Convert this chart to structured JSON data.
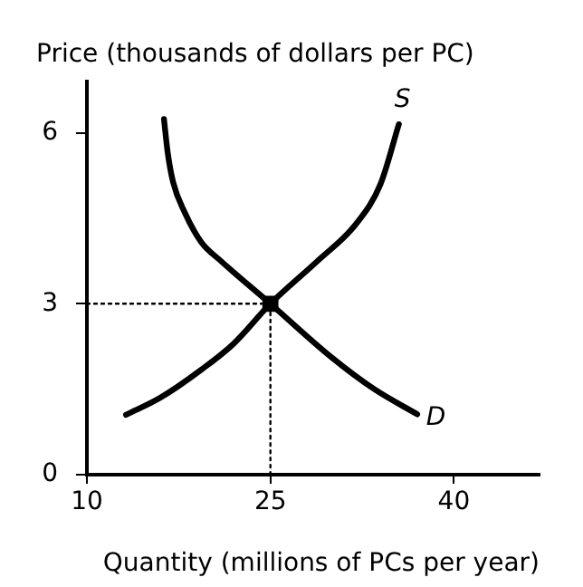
{
  "chart_data": {
    "type": "line",
    "xlabel": "Quantity (millions of PCs per year)",
    "ylabel": "Price (thousands of dollars per PC)",
    "xlim": [
      10,
      47
    ],
    "xticks": [
      10,
      25,
      40
    ],
    "ylim": [
      0,
      6.9
    ],
    "yticks": [
      0,
      3,
      6
    ],
    "grid": false,
    "legend": false,
    "series": [
      {
        "name": "S",
        "color": "#000000",
        "marker": "none",
        "line_style": "solid",
        "x": [
          13.2,
          16,
          19.4,
          22,
          25,
          28.9,
          32,
          34,
          35.5
        ],
        "values": [
          1.05,
          1.35,
          1.85,
          2.3,
          3,
          3.76,
          4.4,
          5.1,
          6.15
        ]
      },
      {
        "name": "D",
        "color": "#000000",
        "marker": "none",
        "line_style": "solid",
        "x": [
          16.3,
          16.6,
          17.05,
          18,
          19.35,
          20.9,
          25,
          30,
          33.5,
          37
        ],
        "values": [
          6.24,
          5.66,
          5.13,
          4.6,
          4.08,
          3.76,
          3,
          2.06,
          1.5,
          1.06
        ]
      },
      {
        "color": "#000000",
        "marker": "none",
        "line_style": "dotted",
        "x": [
          10,
          25
        ],
        "values": [
          3,
          3
        ]
      },
      {
        "color": "#000000",
        "marker": "none",
        "line_style": "dotted",
        "x": [
          25,
          25
        ],
        "values": [
          0,
          3
        ]
      },
      {
        "type": "scatter",
        "color": "#000000",
        "marker": "square",
        "x": [
          25
        ],
        "values": [
          3
        ]
      }
    ]
  }
}
